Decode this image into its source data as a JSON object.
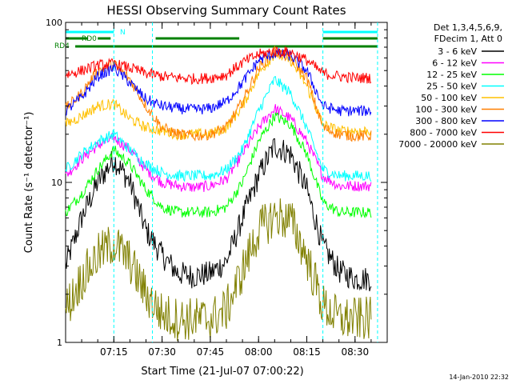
{
  "chart_data": {
    "type": "line",
    "title": "HESSI Observing Summary Count Rates",
    "xlabel": "Start Time (21-Jul-07 07:00:22)",
    "ylabel": "Count Rate (s⁻¹ detector⁻¹)",
    "y_scale": "log",
    "ylim": [
      1,
      100
    ],
    "xlim": [
      "07:00",
      "08:40"
    ],
    "x_ticks": [
      "07:15",
      "07:30",
      "07:45",
      "08:00",
      "08:15",
      "08:30"
    ],
    "y_tick_labels": [
      "1",
      "10",
      "100"
    ],
    "legend_header": [
      "Det 1,3,4,5,6,9,",
      "FDecim 1, Att 0"
    ],
    "legend_placement": "right",
    "footer_date": "14-Jan-2010 22:32",
    "flags": [
      {
        "label": "N",
        "color": "#00ffff",
        "spans": [
          [
            "07:00",
            "07:15"
          ],
          [
            "08:20",
            "08:37"
          ]
        ]
      },
      {
        "label": "RD0",
        "color": "#008000",
        "spans": [
          [
            "07:00",
            "07:07"
          ],
          [
            "07:28",
            "07:54"
          ],
          [
            "07:10",
            "07:14"
          ],
          [
            "08:20",
            "08:37"
          ]
        ]
      },
      {
        "label": "RD4",
        "color": "#008000",
        "spans": [
          [
            "07:03",
            "08:37"
          ]
        ]
      }
    ],
    "vertical_markers": [
      "07:15",
      "07:27",
      "08:20",
      "08:37"
    ],
    "series": [
      {
        "name": "3 - 6 keV",
        "color": "#000000",
        "x": [
          "07:00",
          "07:05",
          "07:10",
          "07:15",
          "07:20",
          "07:25",
          "07:30",
          "07:35",
          "07:40",
          "07:45",
          "07:50",
          "07:55",
          "08:00",
          "08:05",
          "08:10",
          "08:15",
          "08:20",
          "08:25",
          "08:30",
          "08:35"
        ],
        "values": [
          3.0,
          6,
          10,
          14,
          10,
          5,
          3.5,
          2.7,
          2.6,
          2.7,
          3.2,
          6,
          11,
          17,
          15,
          9,
          4,
          2.8,
          2.5,
          2.5
        ]
      },
      {
        "name": "6 - 12 keV",
        "color": "#ff00ff",
        "x": [
          "07:00",
          "07:05",
          "07:10",
          "07:15",
          "07:20",
          "07:25",
          "07:30",
          "07:35",
          "07:40",
          "07:45",
          "07:50",
          "07:55",
          "08:00",
          "08:05",
          "08:10",
          "08:15",
          "08:20",
          "08:25",
          "08:30",
          "08:35"
        ],
        "values": [
          11,
          14,
          17,
          19,
          16,
          12,
          10,
          9.5,
          9.3,
          9.5,
          10.5,
          15,
          22,
          29,
          25,
          18,
          11,
          9.5,
          9.5,
          9.5
        ]
      },
      {
        "name": "12 - 25 keV",
        "color": "#00ff00",
        "x": [
          "07:00",
          "07:05",
          "07:10",
          "07:15",
          "07:20",
          "07:25",
          "07:30",
          "07:35",
          "07:40",
          "07:45",
          "07:50",
          "07:55",
          "08:00",
          "08:05",
          "08:10",
          "08:15",
          "08:20",
          "08:25",
          "08:30",
          "08:35"
        ],
        "values": [
          6.5,
          8.5,
          12,
          16,
          13,
          9,
          7,
          6.5,
          6.5,
          6.5,
          7,
          10,
          18,
          26,
          23,
          15,
          7.5,
          6.5,
          6.5,
          6.5
        ]
      },
      {
        "name": "25 - 50 keV",
        "color": "#00ffff",
        "x": [
          "07:00",
          "07:05",
          "07:10",
          "07:15",
          "07:20",
          "07:25",
          "07:30",
          "07:35",
          "07:40",
          "07:45",
          "07:50",
          "07:55",
          "08:00",
          "08:05",
          "08:10",
          "08:15",
          "08:20",
          "08:25",
          "08:30",
          "08:35"
        ],
        "values": [
          12,
          15,
          18,
          20,
          16,
          13,
          11.5,
          11,
          11,
          11,
          12,
          16,
          28,
          44,
          36,
          22,
          12,
          11,
          11,
          11
        ]
      },
      {
        "name": "50 - 100 keV",
        "color": "#ffc000",
        "x": [
          "07:00",
          "07:05",
          "07:10",
          "07:15",
          "07:20",
          "07:25",
          "07:30",
          "07:35",
          "07:40",
          "07:45",
          "07:50",
          "07:55",
          "08:00",
          "08:05",
          "08:10",
          "08:15",
          "08:20",
          "08:25",
          "08:30",
          "08:35"
        ],
        "values": [
          23,
          26,
          30,
          31,
          25,
          22,
          21,
          20,
          20,
          20,
          22,
          30,
          48,
          64,
          58,
          40,
          23,
          21,
          21,
          21
        ]
      },
      {
        "name": "100 - 300 keV",
        "color": "#ff7f00",
        "x": [
          "07:00",
          "07:05",
          "07:10",
          "07:15",
          "07:20",
          "07:25",
          "07:30",
          "07:35",
          "07:40",
          "07:45",
          "07:50",
          "07:55",
          "08:00",
          "08:05",
          "08:10",
          "08:15",
          "08:20",
          "08:25",
          "08:30",
          "08:35"
        ],
        "values": [
          29,
          36,
          50,
          55,
          44,
          30,
          22,
          20,
          19.5,
          20,
          22,
          32,
          52,
          66,
          60,
          45,
          22,
          20,
          19.5,
          19.5
        ]
      },
      {
        "name": "300 - 800 keV",
        "color": "#0000ff",
        "x": [
          "07:00",
          "07:05",
          "07:10",
          "07:15",
          "07:20",
          "07:25",
          "07:30",
          "07:35",
          "07:40",
          "07:45",
          "07:50",
          "07:55",
          "08:00",
          "08:05",
          "08:10",
          "08:15",
          "08:20",
          "08:25",
          "08:30",
          "08:35"
        ],
        "values": [
          28,
          34,
          46,
          52,
          42,
          33,
          30,
          29,
          28.5,
          29,
          32,
          42,
          58,
          64,
          62,
          50,
          30,
          28,
          28,
          28
        ]
      },
      {
        "name": "800 - 7000 keV",
        "color": "#ff0000",
        "x": [
          "07:00",
          "07:05",
          "07:10",
          "07:15",
          "07:20",
          "07:25",
          "07:30",
          "07:35",
          "07:40",
          "07:45",
          "07:50",
          "07:55",
          "08:00",
          "08:05",
          "08:10",
          "08:15",
          "08:20",
          "08:25",
          "08:30",
          "08:35"
        ],
        "values": [
          47,
          50,
          54,
          55,
          52,
          48,
          46,
          45,
          44.5,
          45,
          47,
          56,
          63,
          66,
          65,
          58,
          48,
          46,
          45,
          45
        ]
      },
      {
        "name": "7000 - 20000 keV",
        "color": "#808000",
        "x": [
          "07:00",
          "07:05",
          "07:10",
          "07:15",
          "07:20",
          "07:25",
          "07:30",
          "07:35",
          "07:40",
          "07:45",
          "07:50",
          "07:55",
          "08:00",
          "08:05",
          "08:10",
          "08:15",
          "08:20",
          "08:25",
          "08:30",
          "08:35"
        ],
        "values": [
          1.6,
          2.5,
          3.5,
          4.2,
          3.2,
          2.0,
          1.5,
          1.4,
          1.4,
          1.4,
          1.6,
          2.8,
          5,
          6.2,
          5.8,
          3.4,
          1.7,
          1.4,
          1.4,
          1.4
        ]
      }
    ]
  }
}
